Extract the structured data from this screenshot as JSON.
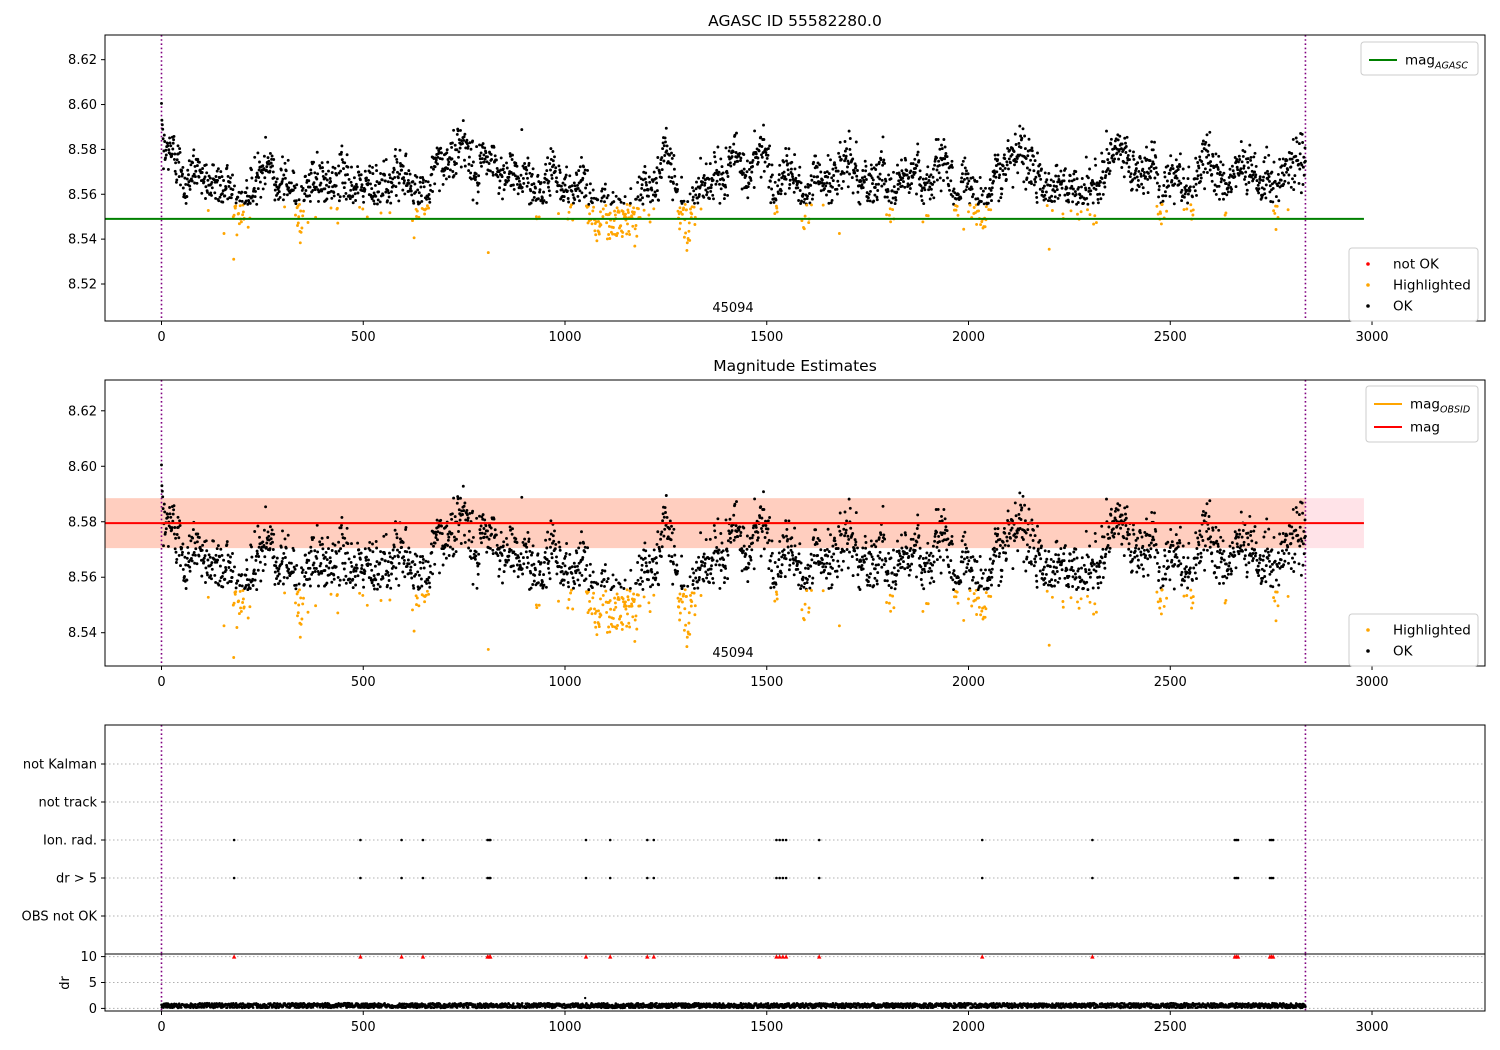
{
  "chart_data": [
    {
      "type": "scatter",
      "title": "AGASC ID 55582280.0",
      "xlim": [
        -140,
        3280
      ],
      "ylim": [
        8.5035,
        8.631
      ],
      "xticks": [
        0,
        500,
        1000,
        1500,
        2000,
        2500,
        3000
      ],
      "yticks": [
        8.52,
        8.54,
        8.56,
        8.58,
        8.6,
        8.62
      ],
      "yticks_text": [
        "8.52",
        "8.54",
        "8.56",
        "8.58",
        "8.60",
        "8.62"
      ],
      "obsid_label": "45094",
      "obsid_boundaries": [
        0,
        2835
      ],
      "lines": [
        {
          "name": "magAGASC",
          "label_main": "mag",
          "label_sub": "AGASC",
          "y": 8.549,
          "x": [
            -140,
            2980
          ],
          "color": "#008000"
        }
      ],
      "legend_lines": [
        {
          "label_main": "mag",
          "label_sub": "AGASC",
          "color": "#008000"
        }
      ],
      "legend_points": [
        {
          "label": "not OK",
          "color": "#ff0000"
        },
        {
          "label": "Highlighted",
          "color": "#ffa500"
        },
        {
          "label": "OK",
          "color": "#000000"
        }
      ],
      "series_summary": {
        "n_points": 2836,
        "x_range": [
          0,
          2835
        ],
        "ok_y_range": [
          8.555,
          8.599
        ],
        "highlighted_y_range": [
          8.534,
          8.555
        ]
      }
    },
    {
      "type": "scatter",
      "title": "Magnitude Estimates",
      "xlim": [
        -140,
        3280
      ],
      "ylim": [
        8.528,
        8.6311
      ],
      "xticks": [
        0,
        500,
        1000,
        1500,
        2000,
        2500,
        3000
      ],
      "yticks": [
        8.54,
        8.56,
        8.58,
        8.6,
        8.62
      ],
      "yticks_text": [
        "8.54",
        "8.56",
        "8.58",
        "8.60",
        "8.62"
      ],
      "obsid_label": "45094",
      "obsid_boundaries": [
        0,
        2835
      ],
      "band": {
        "x": [
          -140,
          2980
        ],
        "y": [
          8.5705,
          8.5885
        ]
      },
      "obsid_band": {
        "x": [
          0,
          2835
        ],
        "y": [
          8.5705,
          8.5885
        ]
      },
      "lines": [
        {
          "name": "magOBSID",
          "y": 8.5795,
          "x": [
            0,
            2835
          ],
          "color": "#ffa500"
        },
        {
          "name": "mag",
          "y": 8.5795,
          "x": [
            -140,
            2980
          ],
          "color": "#ff0000"
        }
      ],
      "legend_lines": [
        {
          "label_main": "mag",
          "label_sub": "OBSID",
          "color": "#ffa500"
        },
        {
          "label_main": "mag",
          "label_sub": "",
          "color": "#ff0000"
        }
      ],
      "legend_points": [
        {
          "label": "Highlighted",
          "color": "#ffa500"
        },
        {
          "label": "OK",
          "color": "#000000"
        }
      ]
    },
    {
      "type": "scatter",
      "title": "",
      "xlim": [
        -140,
        3280
      ],
      "categories": [
        "OBS not OK",
        "dr > 5",
        "Ion. rad.",
        "not track",
        "not Kalman"
      ],
      "flag_x": [
        180,
        493,
        595,
        648,
        808,
        812,
        815,
        1052,
        1112,
        1204,
        1220,
        1524,
        1532,
        1540,
        1548,
        1630,
        2034,
        2307,
        2660,
        2664,
        2668,
        2747,
        2751,
        2755
      ],
      "flags": {
        "dr > 5": true,
        "Ion. rad.": true,
        "OBS not OK": false,
        "not track": false,
        "not Kalman": false
      },
      "obsid_boundaries": [
        0,
        2835
      ]
    },
    {
      "type": "scatter",
      "title": "",
      "ylabel": "dr",
      "xlim": [
        -140,
        3280
      ],
      "ylim": [
        -0.5,
        10.5
      ],
      "xticks": [
        0,
        500,
        1000,
        1500,
        2000,
        2500,
        3000
      ],
      "yticks": [
        0,
        5,
        10
      ],
      "yticks_text": [
        "0",
        "5",
        "10"
      ],
      "dr_typical": [
        0.1,
        1.0
      ],
      "dr_outlier": {
        "x": 1050,
        "y": 2.0
      },
      "dr_clipped_marker": {
        "y": 10,
        "color": "#ff0000",
        "marker": "triangle"
      },
      "obsid_boundaries": [
        0,
        2835
      ]
    }
  ],
  "tick_text": {
    "x": [
      "0",
      "500",
      "1000",
      "1500",
      "2000",
      "2500",
      "3000"
    ]
  }
}
